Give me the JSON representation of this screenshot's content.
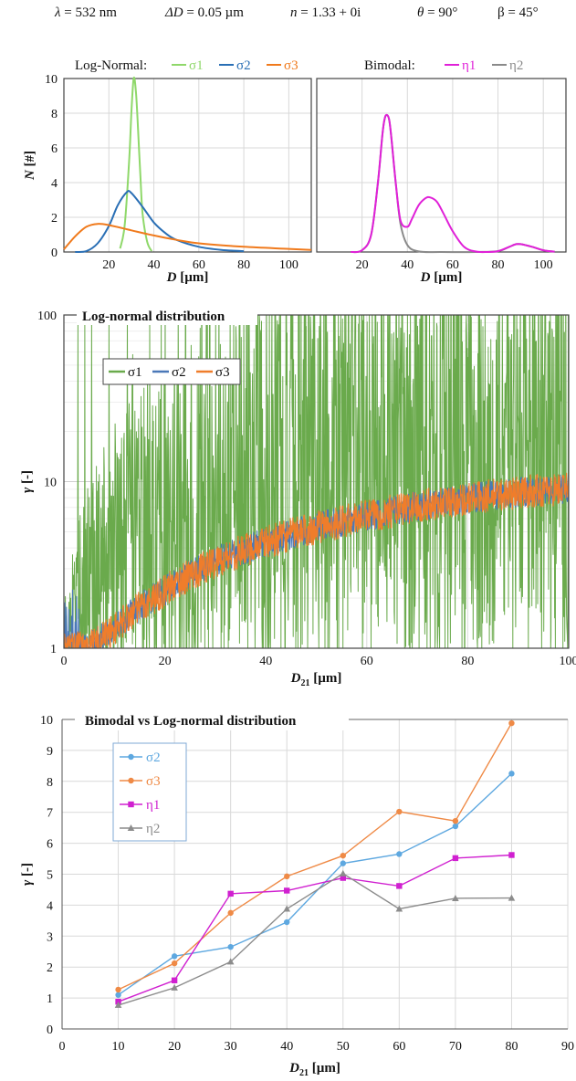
{
  "header": {
    "params": [
      {
        "sym": "λ",
        "rest": " = 532 nm"
      },
      {
        "sym": "ΔD",
        "rest": " = 0.05 µm"
      },
      {
        "sym": "n",
        "rest": " = 1.33 + 0i"
      },
      {
        "sym": "θ",
        "rest": " = 90°"
      },
      {
        "sym": "β",
        "rest": " = 45°"
      }
    ]
  },
  "colors": {
    "s1_top": "#8fd86a",
    "s2": "#2a6fb5",
    "s3": "#f07a1c",
    "eta1": "#e020d8",
    "eta2": "#8a8a8a",
    "s1_mid": "#6aaa4c",
    "s2_mid": "#4a78b8",
    "s3_mid": "#ef7d2b",
    "s2_bot": "#5ea8e0",
    "s3_bot": "#ef8a46",
    "eta1_bot": "#d020d0",
    "eta2_bot": "#8c8c8c"
  },
  "chart_data": [
    {
      "type": "line",
      "legend_title": "Log-Normal:",
      "xlabel": "D [µm]",
      "ylabel": "N [#]",
      "xlim": [
        0,
        110
      ],
      "ylim": [
        0,
        10
      ],
      "xticks": [
        20,
        40,
        60,
        80,
        100
      ],
      "yticks": [
        0,
        2,
        4,
        6,
        8,
        10
      ],
      "grid": true,
      "legend_position": "top",
      "series": [
        {
          "name": "σ1",
          "x": [
            25,
            27,
            29,
            30,
            31,
            32,
            33,
            34,
            35,
            37,
            39
          ],
          "y": [
            0.2,
            1.5,
            5.2,
            8.0,
            10.0,
            9.3,
            7.0,
            4.4,
            2.2,
            0.6,
            0.05
          ]
        },
        {
          "name": "σ2",
          "x": [
            5,
            10,
            15,
            20,
            24,
            28,
            30,
            35,
            40,
            45,
            50,
            60,
            70,
            80
          ],
          "y": [
            0,
            0.05,
            0.5,
            1.5,
            2.7,
            3.45,
            3.4,
            2.6,
            1.7,
            1.1,
            0.7,
            0.3,
            0.12,
            0.05
          ]
        },
        {
          "name": "σ3",
          "x": [
            0,
            5,
            10,
            15,
            20,
            30,
            40,
            50,
            60,
            80,
            100,
            110
          ],
          "y": [
            0.15,
            0.9,
            1.45,
            1.62,
            1.55,
            1.25,
            0.95,
            0.7,
            0.5,
            0.3,
            0.18,
            0.12
          ]
        }
      ]
    },
    {
      "type": "line",
      "legend_title": "Bimodal:",
      "xlabel": "D [µm]",
      "ylabel": "",
      "xlim": [
        0,
        110
      ],
      "ylim": [
        0,
        10
      ],
      "xticks": [
        20,
        40,
        60,
        80,
        100
      ],
      "yticks": [
        0,
        2,
        4,
        6,
        8,
        10
      ],
      "grid": true,
      "legend_position": "top",
      "series": [
        {
          "name": "η1",
          "x": [
            15,
            20,
            24,
            27,
            29,
            30,
            31,
            32,
            33,
            35,
            37,
            40,
            42,
            45,
            48,
            50,
            53,
            56,
            60,
            65,
            70,
            75,
            80,
            85,
            88,
            90,
            95,
            100,
            105
          ],
          "y": [
            0,
            0.1,
            1,
            4,
            6.8,
            7.7,
            7.9,
            7.6,
            6.5,
            3.8,
            1.8,
            1.45,
            1.9,
            2.7,
            3.1,
            3.15,
            2.9,
            2.2,
            1.2,
            0.3,
            0.03,
            0,
            0.05,
            0.3,
            0.45,
            0.45,
            0.3,
            0.1,
            0.02
          ]
        },
        {
          "name": "η2",
          "x": [
            15,
            20,
            24,
            27,
            29,
            30,
            31,
            32,
            33,
            35,
            37,
            40,
            45,
            55,
            70,
            80,
            85,
            88,
            90,
            95,
            100,
            105
          ],
          "y": [
            0,
            0.1,
            1,
            4,
            6.8,
            7.7,
            7.9,
            7.6,
            6.5,
            3.8,
            1.6,
            0.4,
            0.03,
            0,
            0,
            0.05,
            0.3,
            0.45,
            0.45,
            0.3,
            0.1,
            0.02
          ]
        }
      ]
    },
    {
      "type": "line",
      "title": "Log-normal distribution",
      "xlabel": "D21 [µm]",
      "ylabel": "γ [-]",
      "xlim": [
        0,
        100
      ],
      "ylim": [
        1,
        100
      ],
      "yscale": "log",
      "xticks": [
        0,
        20,
        40,
        60,
        80,
        100
      ],
      "yticks": [
        1,
        10,
        100
      ],
      "grid": true,
      "legend_position": "top-left",
      "series": [
        {
          "name": "σ1",
          "x": [
            0,
            5,
            10,
            20,
            30,
            40,
            50,
            60,
            70,
            80,
            90,
            100
          ],
          "y": [
            1,
            2.5,
            3,
            5,
            8,
            10,
            13,
            15,
            15,
            14,
            13,
            12
          ]
        },
        {
          "name": "σ2",
          "x": [
            0,
            5,
            10,
            20,
            30,
            40,
            50,
            60,
            70,
            80,
            90,
            100
          ],
          "y": [
            1,
            1,
            1.3,
            2.2,
            3.3,
            4.3,
            5.3,
            6.2,
            7.1,
            7.9,
            8.6,
            9.1
          ]
        },
        {
          "name": "σ3",
          "x": [
            0,
            5,
            10,
            20,
            30,
            40,
            50,
            60,
            70,
            80,
            90,
            100
          ],
          "y": [
            1,
            1,
            1.3,
            2.2,
            3.3,
            4.3,
            5.3,
            6.2,
            7.1,
            7.9,
            8.6,
            9.1
          ]
        }
      ]
    },
    {
      "type": "line",
      "title": "Bimodal vs Log-normal distribution",
      "xlabel": "D21 [µm]",
      "ylabel": "γ [-]",
      "xlim": [
        0,
        90
      ],
      "ylim": [
        0,
        10
      ],
      "xticks": [
        0,
        10,
        20,
        30,
        40,
        50,
        60,
        70,
        80,
        90
      ],
      "yticks": [
        0,
        1,
        2,
        3,
        4,
        5,
        6,
        7,
        8,
        9,
        10
      ],
      "grid": true,
      "legend_position": "top-left",
      "x": [
        10,
        20,
        30,
        40,
        50,
        60,
        70,
        80
      ],
      "series": [
        {
          "name": "σ2",
          "marker": "circle",
          "values": [
            1.1,
            2.35,
            2.65,
            3.45,
            5.35,
            5.65,
            6.55,
            8.25
          ]
        },
        {
          "name": "σ3",
          "marker": "circle",
          "values": [
            1.27,
            2.12,
            3.75,
            4.93,
            5.6,
            7.02,
            6.72,
            9.88
          ]
        },
        {
          "name": "η1",
          "marker": "square",
          "values": [
            0.88,
            1.57,
            4.37,
            4.47,
            4.88,
            4.62,
            5.52,
            5.62
          ]
        },
        {
          "name": "η2",
          "marker": "triangle",
          "values": [
            0.77,
            1.33,
            2.17,
            3.88,
            5.02,
            3.88,
            4.22,
            4.23
          ]
        }
      ]
    }
  ]
}
